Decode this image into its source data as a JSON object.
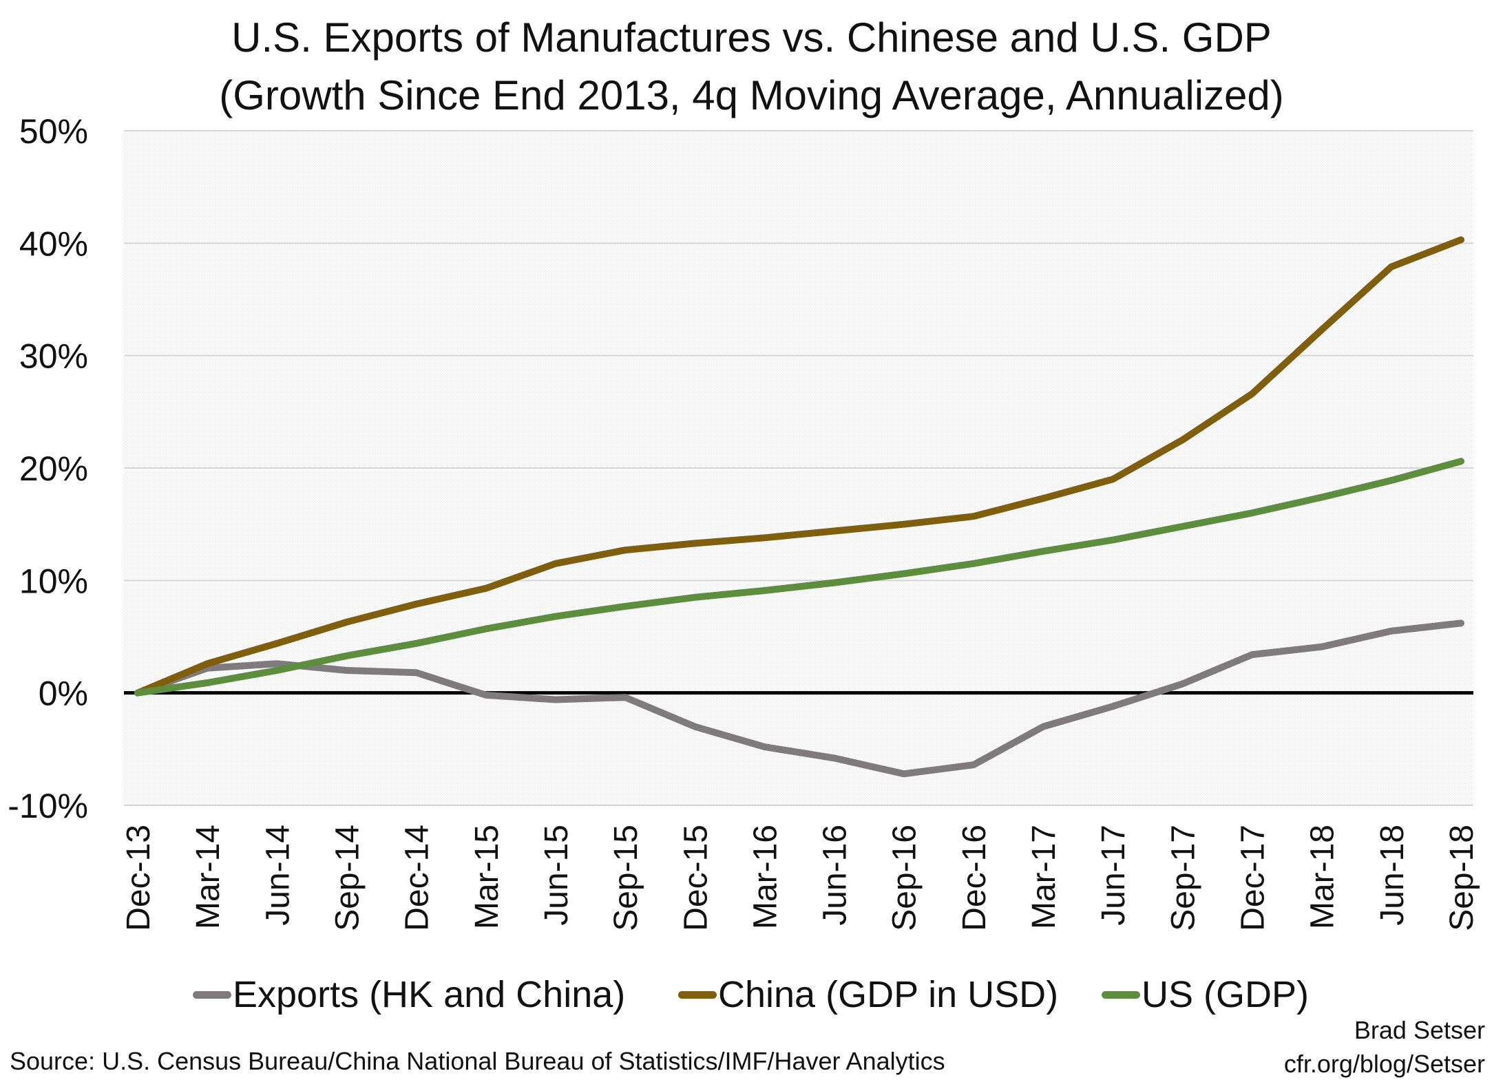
{
  "chart_data": {
    "type": "line",
    "title": "U.S. Exports of Manufactures vs. Chinese and U.S. GDP",
    "subtitle": "(Growth Since End 2013, 4q Moving Average, Annualized)",
    "xlabel": "",
    "ylabel": "",
    "ylim": [
      -10,
      50
    ],
    "y_ticks": [
      50,
      40,
      30,
      20,
      10,
      0,
      -10
    ],
    "y_tick_labels": [
      "50%",
      "40%",
      "30%",
      "20%",
      "10%",
      "0%",
      "-10%"
    ],
    "categories": [
      "Dec-13",
      "Mar-14",
      "Jun-14",
      "Sep-14",
      "Dec-14",
      "Mar-15",
      "Jun-15",
      "Sep-15",
      "Dec-15",
      "Mar-16",
      "Jun-16",
      "Sep-16",
      "Dec-16",
      "Mar-17",
      "Jun-17",
      "Sep-17",
      "Dec-17",
      "Mar-18",
      "Jun-18",
      "Sep-18"
    ],
    "grid": true,
    "legend_position": "bottom",
    "series": [
      {
        "name": "Exports (HK and China)",
        "color": "#7f7b7c",
        "values": [
          0,
          2.2,
          2.6,
          2.0,
          1.8,
          -0.2,
          -0.6,
          -0.4,
          -3.0,
          -4.8,
          -5.8,
          -7.2,
          -6.4,
          -3.0,
          -1.2,
          0.8,
          3.4,
          4.1,
          5.5,
          6.2
        ]
      },
      {
        "name": "China (GDP in USD)",
        "color": "#7f5f0e",
        "values": [
          0,
          2.6,
          4.4,
          6.3,
          7.9,
          9.3,
          11.5,
          12.7,
          13.3,
          13.8,
          14.4,
          15.0,
          15.7,
          17.3,
          19.0,
          22.5,
          26.6,
          32.3,
          37.9,
          40.3
        ]
      },
      {
        "name": "US (GDP)",
        "color": "#5d8e3d",
        "values": [
          0,
          0.9,
          2.0,
          3.3,
          4.4,
          5.7,
          6.8,
          7.7,
          8.5,
          9.1,
          9.8,
          10.6,
          11.5,
          12.6,
          13.6,
          14.8,
          16.0,
          17.4,
          18.9,
          20.6
        ]
      }
    ]
  },
  "source": "Source: U.S. Census Bureau/China National Bureau of Statistics/IMF/Haver Analytics",
  "credit_name": "Brad Setser",
  "credit_url": "cfr.org/blog/Setser"
}
